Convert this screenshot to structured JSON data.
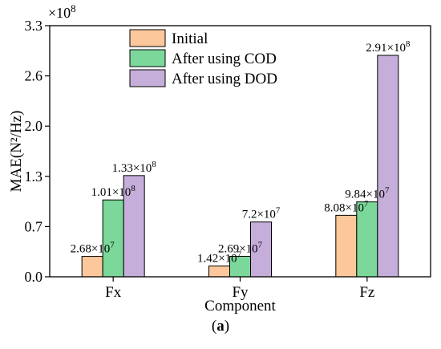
{
  "chart_data": {
    "type": "bar",
    "multiplier_label": "×10",
    "multiplier_exp": "8",
    "xlabel": "Component",
    "ylabel": "MAE(N²/Hz)",
    "ylim": [
      0.0,
      3.3
    ],
    "yticks": [
      "0.0",
      "0.7",
      "1.3",
      "2.0",
      "2.6",
      "3.3"
    ],
    "ytick_values": [
      0.0,
      0.66,
      1.32,
      1.98,
      2.64,
      3.3
    ],
    "categories": [
      "Fx",
      "Fy",
      "Fz"
    ],
    "legend_position": "top-center",
    "series": [
      {
        "name": "Initial",
        "color": "#FCC79A",
        "values": [
          0.268,
          0.142,
          0.808
        ],
        "labels": [
          {
            "mantissa": "2.68×10",
            "exp": "7"
          },
          {
            "mantissa": "1.42×10",
            "exp": "7"
          },
          {
            "mantissa": "8.08×10",
            "exp": "7"
          }
        ]
      },
      {
        "name": "After using COD",
        "color": "#7BD89A",
        "values": [
          1.01,
          0.269,
          0.984
        ],
        "labels": [
          {
            "mantissa": "1.01×10",
            "exp": "8"
          },
          {
            "mantissa": "2.69×10",
            "exp": "7"
          },
          {
            "mantissa": "9.84×10",
            "exp": "7"
          }
        ]
      },
      {
        "name": "After using DOD",
        "color": "#C5AED9",
        "values": [
          1.33,
          0.72,
          2.91
        ],
        "labels": [
          {
            "mantissa": "1.33×10",
            "exp": "8"
          },
          {
            "mantissa": "7.2×10",
            "exp": "7"
          },
          {
            "mantissa": "2.91×10",
            "exp": "8"
          }
        ]
      }
    ]
  },
  "caption": {
    "open": "(",
    "letter": "a",
    "close": ")"
  }
}
